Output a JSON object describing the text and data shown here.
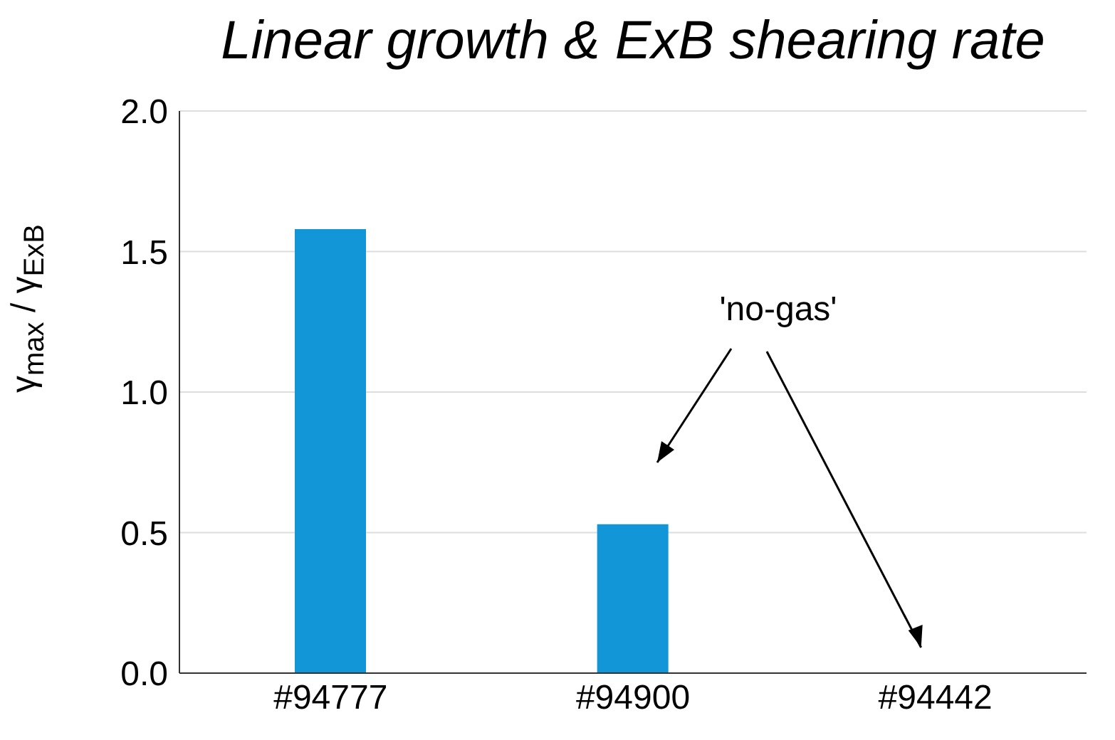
{
  "chart_data": {
    "type": "bar",
    "title": "Linear growth & ExB shearing rate",
    "ylabel": "γ$_{max}$ / γ$_{ExB}$",
    "categories": [
      "#94777",
      "#94900",
      "#94442"
    ],
    "values": [
      1.58,
      0.53,
      0
    ],
    "color": "#1296d8",
    "ylim": [
      0,
      2
    ],
    "yticks": [
      {
        "value": 0,
        "label": "0.0"
      },
      {
        "value": 0.5,
        "label": "0.5"
      },
      {
        "value": 1,
        "label": "1.0"
      },
      {
        "value": 1.5,
        "label": "1.5"
      },
      {
        "value": 2,
        "label": "2.0"
      }
    ],
    "grid": "y",
    "annotations": [
      "'no-gas'"
    ]
  }
}
